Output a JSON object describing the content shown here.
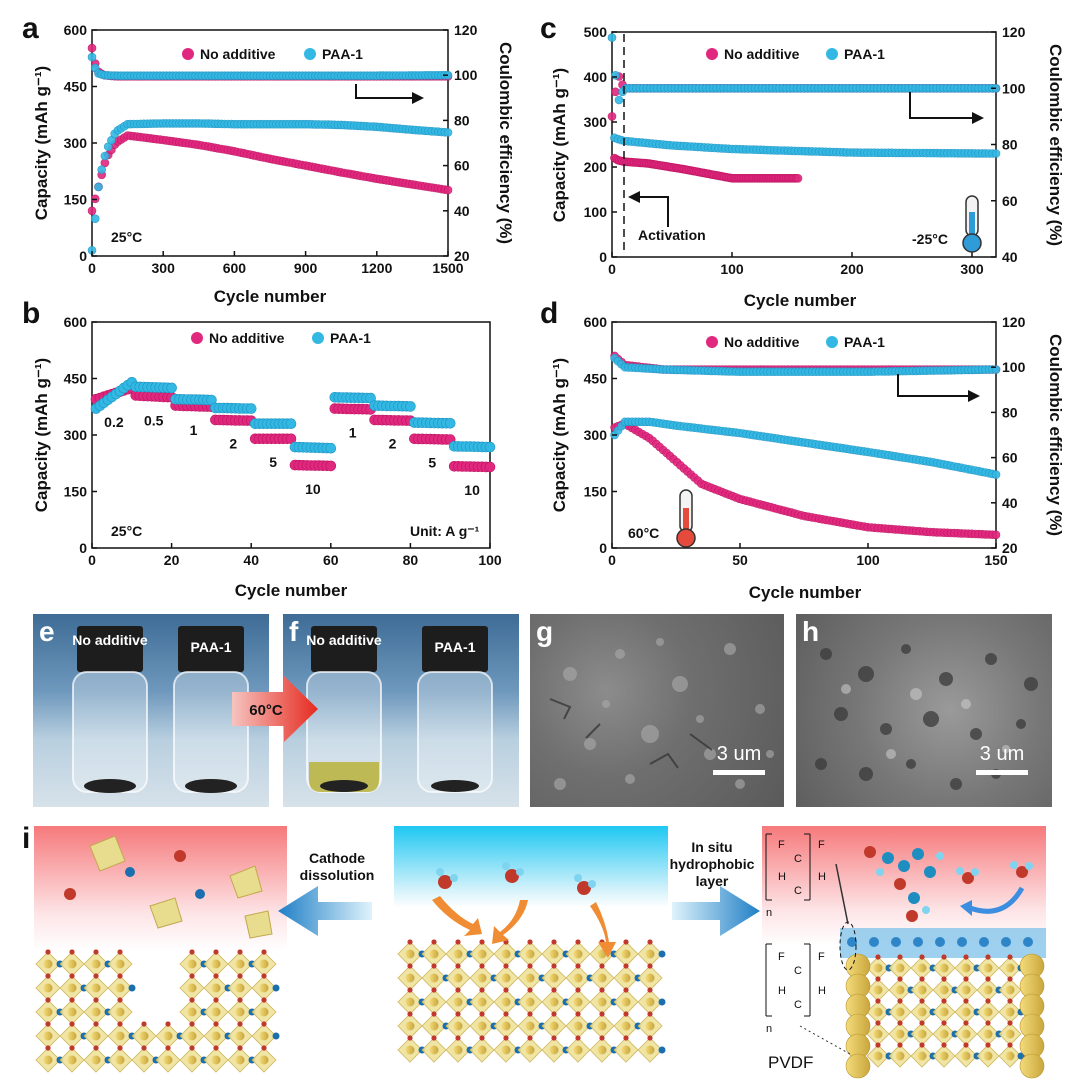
{
  "colors": {
    "pink": "#e0287e",
    "pink_edge": "#c01462",
    "cyan": "#33b8e3",
    "cyan_edge": "#1e95c4"
  },
  "legend": {
    "no_additive": "No additive",
    "paa1": "PAA-1"
  },
  "panels": {
    "a": {
      "letter": "a",
      "temp": "25°C",
      "xlabel": "Cycle number",
      "ylabel_left": "Capacity (mAh g⁻¹)",
      "ylabel_right": "Coulombic efficiency (%)",
      "xticks": [
        "0",
        "300",
        "600",
        "900",
        "1200",
        "1500"
      ],
      "yticks_left": [
        "0",
        "150",
        "300",
        "450",
        "600"
      ],
      "yticks_right": [
        "20",
        "40",
        "60",
        "80",
        "100",
        "120"
      ]
    },
    "b": {
      "letter": "b",
      "temp": "25°C",
      "unit": "Unit: A g⁻¹",
      "xlabel": "Cycle number",
      "ylabel_left": "Capacity (mAh g⁻¹)",
      "xticks": [
        "0",
        "20",
        "40",
        "60",
        "80",
        "100"
      ],
      "yticks_left": [
        "0",
        "150",
        "300",
        "450",
        "600"
      ],
      "rate_labels": [
        "0.2",
        "0.5",
        "1",
        "2",
        "5",
        "10",
        "1",
        "2",
        "5",
        "10"
      ]
    },
    "c": {
      "letter": "c",
      "temp": "-25°C",
      "activation": "Activation",
      "xlabel": "Cycle number",
      "ylabel_left": "Capacity (mAh g⁻¹)",
      "ylabel_right": "Coulombic efficiency (%)",
      "xticks": [
        "0",
        "100",
        "200",
        "300"
      ],
      "yticks_left": [
        "0",
        "100",
        "200",
        "300",
        "400",
        "500"
      ],
      "yticks_right": [
        "40",
        "60",
        "80",
        "100",
        "120"
      ]
    },
    "d": {
      "letter": "d",
      "temp": "60°C",
      "xlabel": "Cycle number",
      "ylabel_left": "Capacity (mAh g⁻¹)",
      "ylabel_right": "Coulombic efficiency (%)",
      "xticks": [
        "0",
        "50",
        "100",
        "150"
      ],
      "yticks_left": [
        "0",
        "150",
        "300",
        "450",
        "600"
      ],
      "yticks_right": [
        "20",
        "40",
        "60",
        "80",
        "100",
        "120"
      ]
    }
  },
  "photos": {
    "e": {
      "letter": "e",
      "cap1": "No additive",
      "cap2": "PAA-1"
    },
    "f": {
      "letter": "f",
      "cap1": "No additive",
      "cap2": "PAA-1",
      "arrow": "60°C"
    },
    "g": {
      "letter": "g",
      "scale": "3 um"
    },
    "h": {
      "letter": "h",
      "scale": "3 um"
    }
  },
  "schematic": {
    "letter": "i",
    "left_arrow": [
      "Cathode",
      "dissolution"
    ],
    "right_arrow": [
      "In situ",
      "hydrophobic",
      "layer"
    ],
    "pvdf": "PVDF",
    "chain_F": "F",
    "chain_H": "H",
    "chain_C": "C",
    "chain_n": "n"
  },
  "chart_data": [
    {
      "panel": "a",
      "type": "scatter",
      "xlim": [
        0,
        1500
      ],
      "ylim_left": [
        0,
        600
      ],
      "ylim_right": [
        20,
        120
      ],
      "series": [
        {
          "name": "No additive",
          "axis": "left",
          "x": [
            0,
            30,
            60,
            100,
            150,
            300,
            450,
            600,
            750,
            900,
            1050,
            1200,
            1350,
            1500
          ],
          "y": [
            120,
            190,
            260,
            300,
            320,
            308,
            295,
            278,
            258,
            240,
            222,
            205,
            190,
            175
          ]
        },
        {
          "name": "PAA-1",
          "axis": "left",
          "x": [
            0,
            30,
            60,
            100,
            150,
            300,
            450,
            600,
            750,
            900,
            1050,
            1200,
            1350,
            1500
          ],
          "y": [
            15,
            200,
            280,
            330,
            350,
            352,
            352,
            350,
            350,
            350,
            348,
            343,
            335,
            328
          ]
        },
        {
          "name": "No additive CE",
          "axis": "right",
          "x": [
            0,
            20,
            50,
            100,
            300,
            600,
            900,
            1200,
            1500
          ],
          "y": [
            112,
            102,
            100,
            99.5,
            99.5,
            99.5,
            99.5,
            99.5,
            99.5
          ]
        },
        {
          "name": "PAA-1 CE",
          "axis": "right",
          "x": [
            0,
            20,
            50,
            100,
            300,
            600,
            900,
            1200,
            1500
          ],
          "y": [
            108,
            101,
            100,
            99.8,
            99.8,
            99.8,
            99.8,
            99.8,
            100
          ]
        }
      ]
    },
    {
      "panel": "b",
      "type": "scatter",
      "xlim": [
        0,
        100
      ],
      "ylim": [
        0,
        600
      ],
      "series": [
        {
          "name": "No additive",
          "steps": [
            [
              1,
              10,
              395,
              425
            ],
            [
              11,
              20,
              405,
              400
            ],
            [
              21,
              30,
              378,
              375
            ],
            [
              31,
              40,
              340,
              338
            ],
            [
              41,
              50,
              290,
              290
            ],
            [
              51,
              60,
              220,
              218
            ],
            [
              61,
              70,
              370,
              368
            ],
            [
              71,
              80,
              340,
              338
            ],
            [
              81,
              90,
              290,
              288
            ],
            [
              91,
              100,
              217,
              215
            ]
          ]
        },
        {
          "name": "PAA-1",
          "steps": [
            [
              1,
              10,
              370,
              440
            ],
            [
              11,
              20,
              428,
              425
            ],
            [
              21,
              30,
              395,
              393
            ],
            [
              31,
              40,
              372,
              370
            ],
            [
              41,
              50,
              330,
              330
            ],
            [
              51,
              60,
              268,
              265
            ],
            [
              61,
              70,
              400,
              398
            ],
            [
              71,
              80,
              378,
              376
            ],
            [
              81,
              90,
              333,
              331
            ],
            [
              91,
              100,
              270,
              268
            ]
          ]
        }
      ]
    },
    {
      "panel": "c",
      "type": "scatter",
      "xlim": [
        0,
        320
      ],
      "ylim_left": [
        0,
        500
      ],
      "ylim_right": [
        40,
        120
      ],
      "series": [
        {
          "name": "No additive",
          "axis": "left",
          "x": [
            2,
            5,
            10,
            30,
            60,
            100,
            155
          ],
          "y": [
            220,
            215,
            212,
            208,
            195,
            175,
            175
          ]
        },
        {
          "name": "PAA-1",
          "axis": "left",
          "x": [
            2,
            5,
            10,
            50,
            100,
            200,
            320
          ],
          "y": [
            265,
            262,
            258,
            248,
            240,
            232,
            230
          ]
        },
        {
          "name": "No additive CE",
          "axis": "right",
          "x": [
            0,
            5,
            10,
            30,
            60,
            155,
            250,
            320
          ],
          "y": [
            90,
            105,
            100,
            100,
            100,
            100,
            100,
            100
          ]
        },
        {
          "name": "PAA-1 CE",
          "axis": "right",
          "x": [
            0,
            5,
            10,
            30,
            60,
            155,
            250,
            320
          ],
          "y": [
            118,
            95,
            100,
            100,
            100,
            100,
            100,
            100
          ]
        }
      ]
    },
    {
      "panel": "d",
      "type": "scatter",
      "xlim": [
        0,
        150
      ],
      "ylim_left": [
        0,
        600
      ],
      "ylim_right": [
        20,
        120
      ],
      "series": [
        {
          "name": "No additive",
          "axis": "left",
          "x": [
            1,
            5,
            15,
            25,
            35,
            50,
            75,
            100,
            125,
            150
          ],
          "y": [
            320,
            330,
            290,
            230,
            170,
            130,
            85,
            55,
            42,
            35
          ]
        },
        {
          "name": "PAA-1",
          "axis": "left",
          "x": [
            1,
            5,
            15,
            25,
            50,
            75,
            100,
            125,
            150
          ],
          "y": [
            300,
            335,
            335,
            325,
            305,
            280,
            255,
            228,
            195
          ]
        },
        {
          "name": "No additive CE",
          "axis": "right",
          "x": [
            1,
            5,
            20,
            50,
            100,
            150
          ],
          "y": [
            105,
            101,
            99,
            99,
            99,
            99
          ]
        },
        {
          "name": "PAA-1 CE",
          "axis": "right",
          "x": [
            1,
            5,
            20,
            50,
            100,
            150
          ],
          "y": [
            104,
            100,
            99,
            98,
            98,
            99
          ]
        }
      ]
    }
  ]
}
